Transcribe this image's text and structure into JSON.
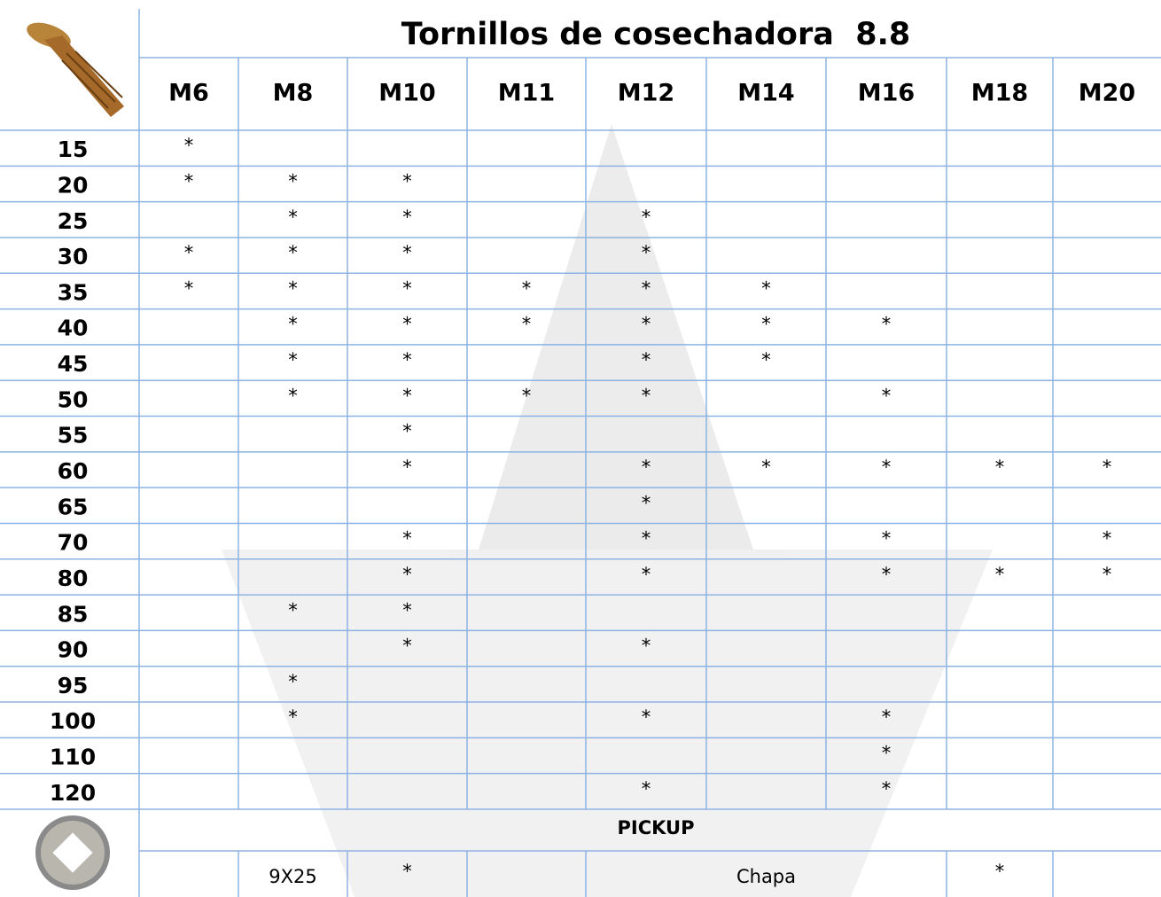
{
  "header": {
    "title": "Tornillos de cosechadora  8.8",
    "columns": [
      "M6",
      "M8",
      "M10",
      "M11",
      "M12",
      "M14",
      "M16",
      "M18",
      "M20"
    ]
  },
  "table": {
    "rows": [
      [
        "15",
        "*",
        null,
        null,
        null,
        null,
        null,
        null,
        null,
        null
      ],
      [
        "20",
        "*",
        "*",
        "*",
        null,
        null,
        null,
        null,
        null,
        null
      ],
      [
        "25",
        null,
        "*",
        "*",
        null,
        "*",
        null,
        null,
        null,
        null
      ],
      [
        "30",
        "*",
        "*",
        "*",
        null,
        "*",
        null,
        null,
        null,
        null
      ],
      [
        "35",
        "*",
        "*",
        "*",
        "*",
        "*",
        "*",
        null,
        null,
        null
      ],
      [
        "40",
        null,
        "*",
        "*",
        "*",
        "*",
        "*",
        "*",
        null,
        null
      ],
      [
        "45",
        null,
        "*",
        "*",
        null,
        "*",
        "*",
        null,
        null,
        null
      ],
      [
        "50",
        null,
        "*",
        "*",
        "*",
        "*",
        null,
        "*",
        null,
        null
      ],
      [
        "55",
        null,
        null,
        "*",
        null,
        null,
        null,
        null,
        null,
        null
      ],
      [
        "60",
        null,
        null,
        "*",
        null,
        "*",
        "*",
        "*",
        "*",
        "*"
      ],
      [
        "65",
        null,
        null,
        null,
        null,
        "*",
        null,
        null,
        null,
        null
      ],
      [
        "70",
        null,
        null,
        "*",
        null,
        "*",
        null,
        "*",
        null,
        "*"
      ],
      [
        "80",
        null,
        null,
        "*",
        null,
        "*",
        null,
        "*",
        "*",
        "*"
      ],
      [
        "85",
        null,
        "*",
        "*",
        null,
        null,
        null,
        null,
        null,
        null
      ],
      [
        "90",
        null,
        null,
        "*",
        null,
        "*",
        null,
        null,
        null,
        null
      ],
      [
        "95",
        null,
        "*",
        null,
        null,
        null,
        null,
        null,
        null,
        null
      ],
      [
        "100",
        null,
        "*",
        null,
        null,
        "*",
        null,
        "*",
        null,
        null
      ],
      [
        "110",
        null,
        null,
        null,
        null,
        null,
        null,
        "*",
        null,
        null
      ],
      [
        "120",
        null,
        null,
        null,
        null,
        "*",
        null,
        "*",
        null,
        null
      ]
    ]
  },
  "pickup": {
    "title": "PICKUP",
    "cells": [
      null,
      "9X25",
      "*",
      null,
      "Chapa",
      "*",
      null
    ]
  }
}
